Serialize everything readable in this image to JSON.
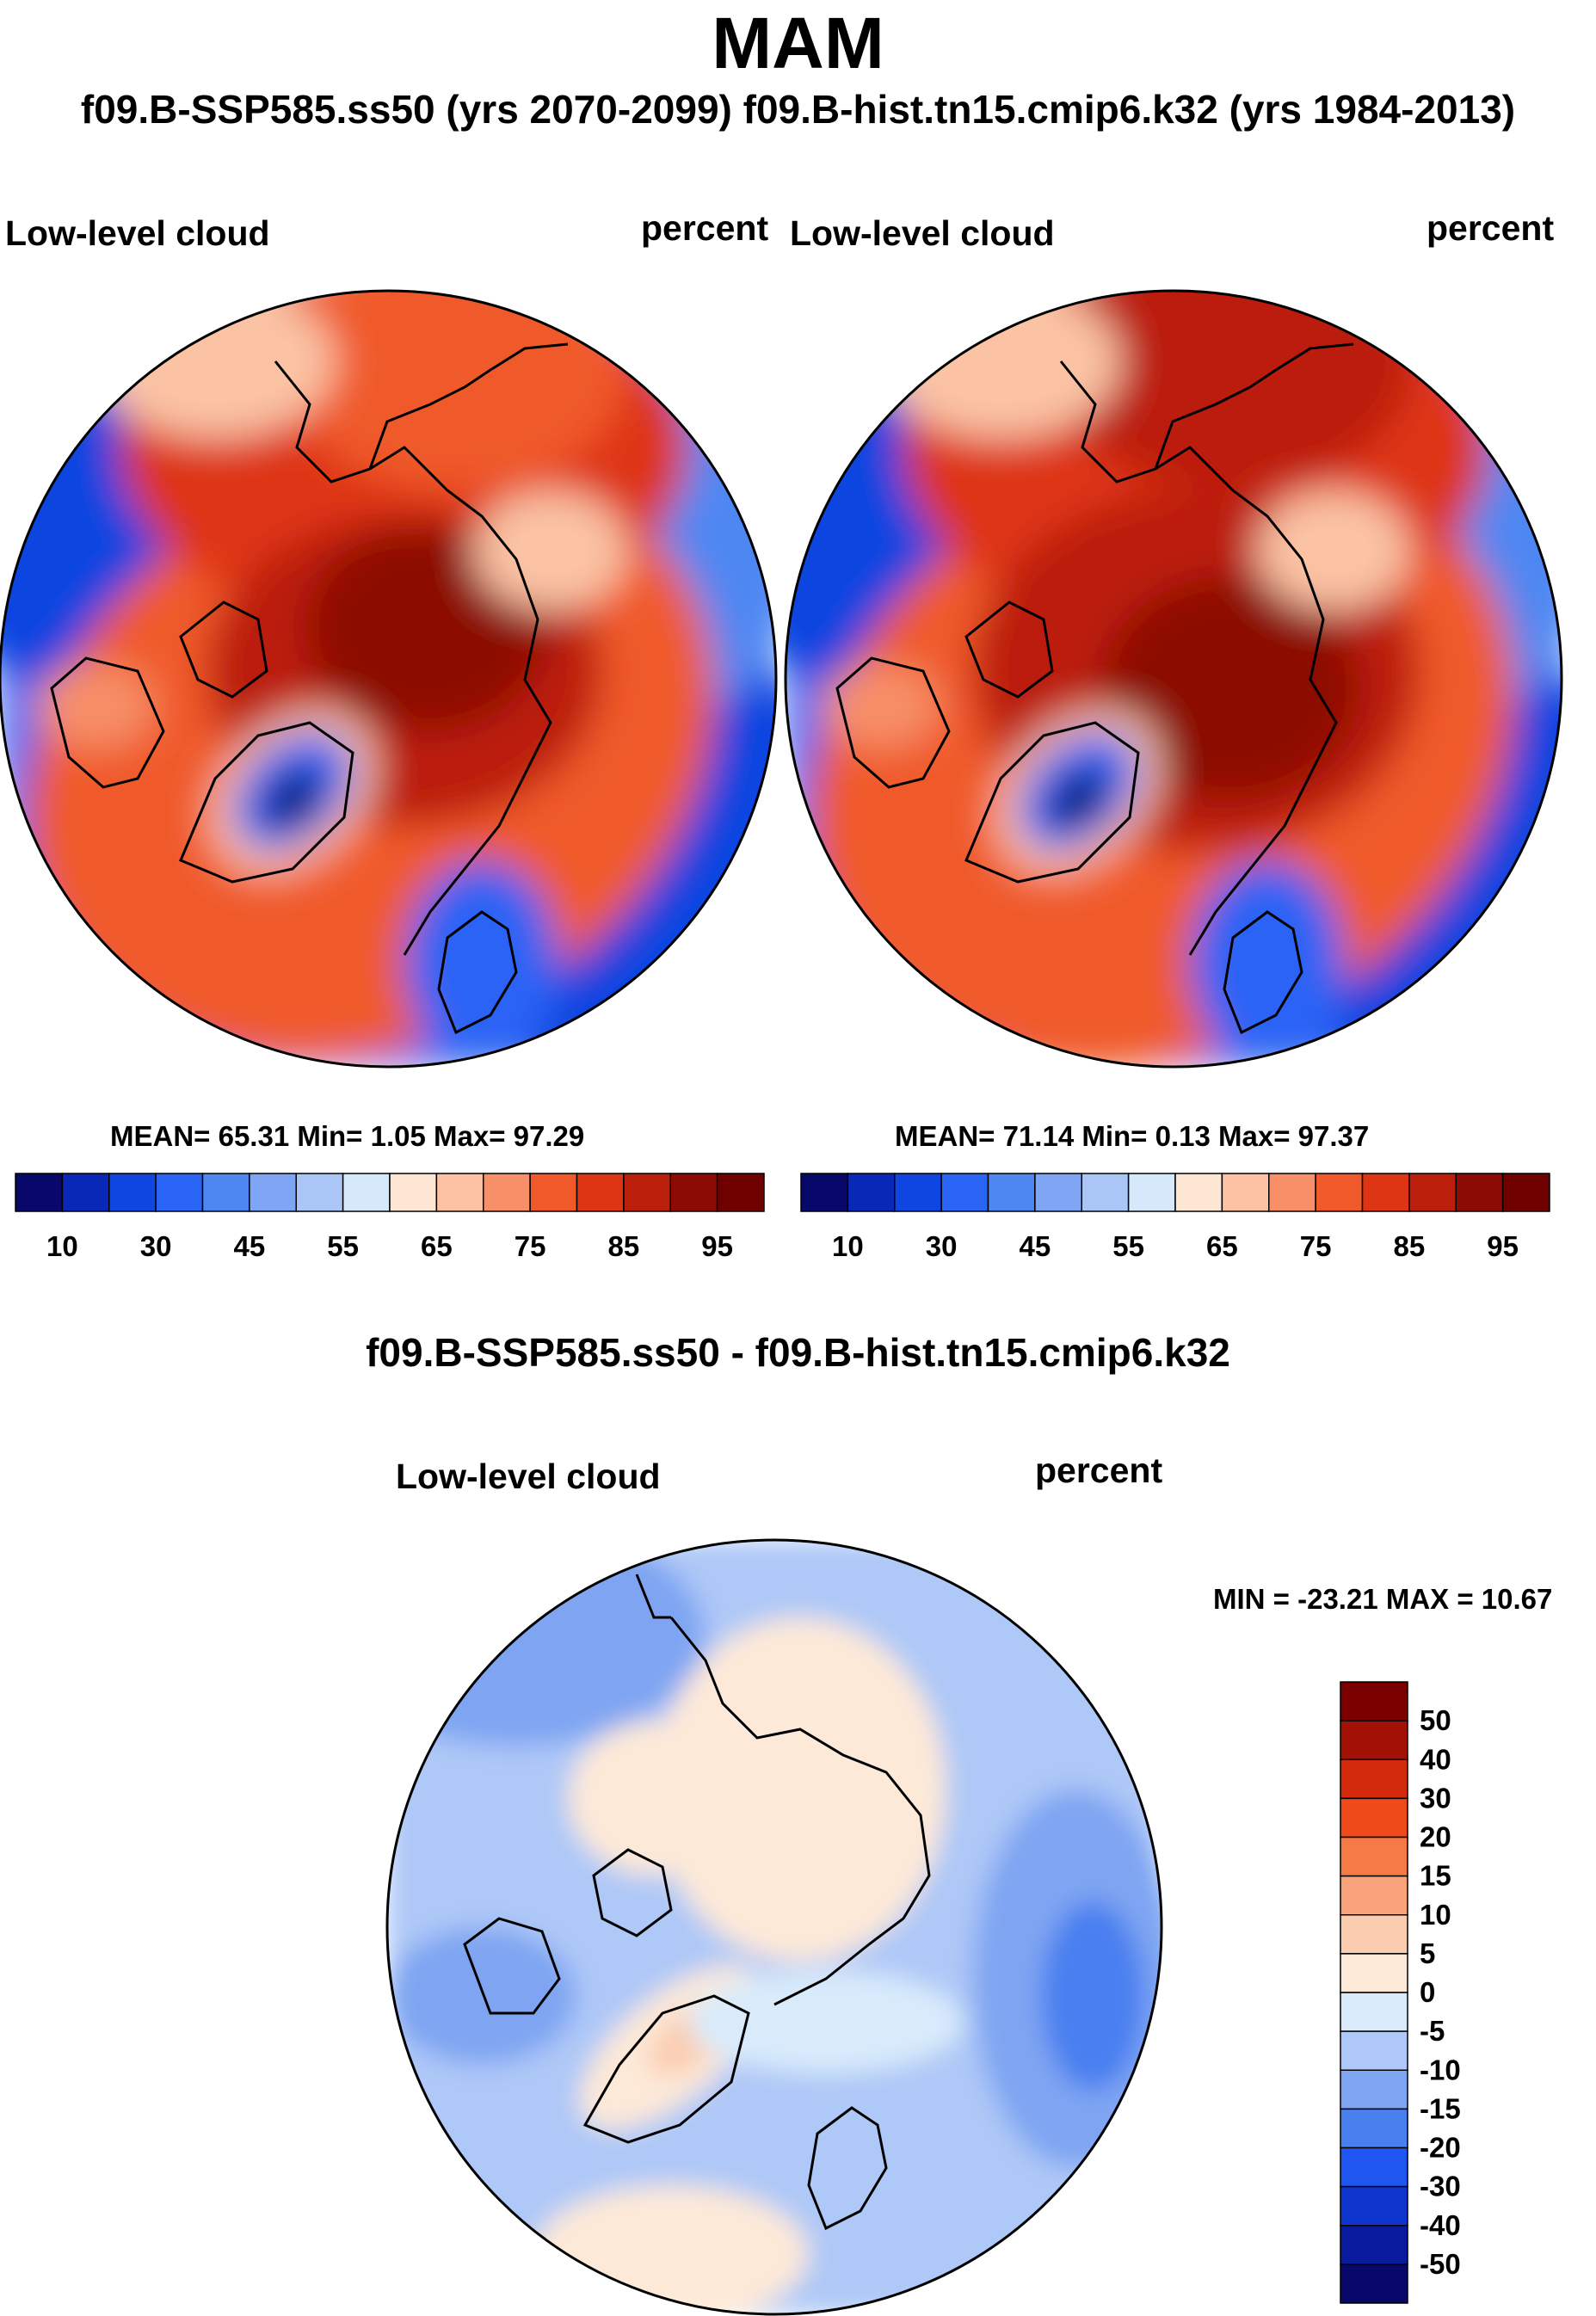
{
  "title": "MAM",
  "subtitle": "f09.B-SSP585.ss50 (yrs 2070-2099)  f09.B-hist.tn15.cmip6.k32 (yrs 1984-2013)",
  "panels": [
    {
      "case": "f09.B-SSP585.ss50",
      "years": "2070-2099",
      "variable": "Low-level cloud",
      "units": "percent",
      "stats_text": "MEAN=  65.31  Min=   1.05  Max=  97.29",
      "mean": 65.31,
      "min": 1.05,
      "max": 97.29
    },
    {
      "case": "f09.B-hist.tn15.cmip6.k32",
      "years": "1984-2013",
      "variable": "Low-level cloud",
      "units": "percent",
      "stats_text": "MEAN=  71.14  Min=   0.13  Max=  97.37",
      "mean": 71.14,
      "min": 0.13,
      "max": 97.37
    }
  ],
  "field_colorbar": {
    "levels": [
      10,
      20,
      30,
      40,
      45,
      50,
      55,
      60,
      65,
      70,
      75,
      80,
      85,
      90,
      95
    ],
    "tick_labels": [
      "10",
      "30",
      "45",
      "55",
      "65",
      "75",
      "85",
      "95"
    ],
    "colors": [
      "#08086b",
      "#0a28b8",
      "#0f45e0",
      "#2a64f5",
      "#4f87f2",
      "#7ea6f4",
      "#aac6f7",
      "#d6e9fb",
      "#fde6d4",
      "#fbc3a4",
      "#f78f68",
      "#f05a2a",
      "#de3614",
      "#bb1f0c",
      "#8c0b05",
      "#6e0000"
    ]
  },
  "difference": {
    "title": "f09.B-SSP585.ss50 - f09.B-hist.tn15.cmip6.k32",
    "variable": "Low-level cloud",
    "units": "percent",
    "minmax_text": "MIN = -23.21 MAX =  10.67",
    "min": -23.21,
    "max": 10.67,
    "colorbar": {
      "levels": [
        -50,
        -40,
        -30,
        -20,
        -15,
        -10,
        -5,
        0,
        5,
        10,
        15,
        20,
        30,
        40,
        50
      ],
      "tick_labels": [
        "50",
        "40",
        "30",
        "20",
        "15",
        "10",
        "5",
        "0",
        "-5",
        "-10",
        "-15",
        "-20",
        "-30",
        "-40",
        "-50"
      ],
      "colors": [
        "#08086b",
        "#0a1a9e",
        "#0f35cf",
        "#1f55f0",
        "#4a7ff0",
        "#7fa5f2",
        "#aec8f7",
        "#d9ebfb",
        "#fde9d8",
        "#fbcdb0",
        "#f9a37c",
        "#f57a45",
        "#ef4a1a",
        "#d42a0c",
        "#a31005",
        "#7a0000"
      ]
    }
  },
  "colors": {
    "coastline": "#000000",
    "frame": "#000000"
  }
}
